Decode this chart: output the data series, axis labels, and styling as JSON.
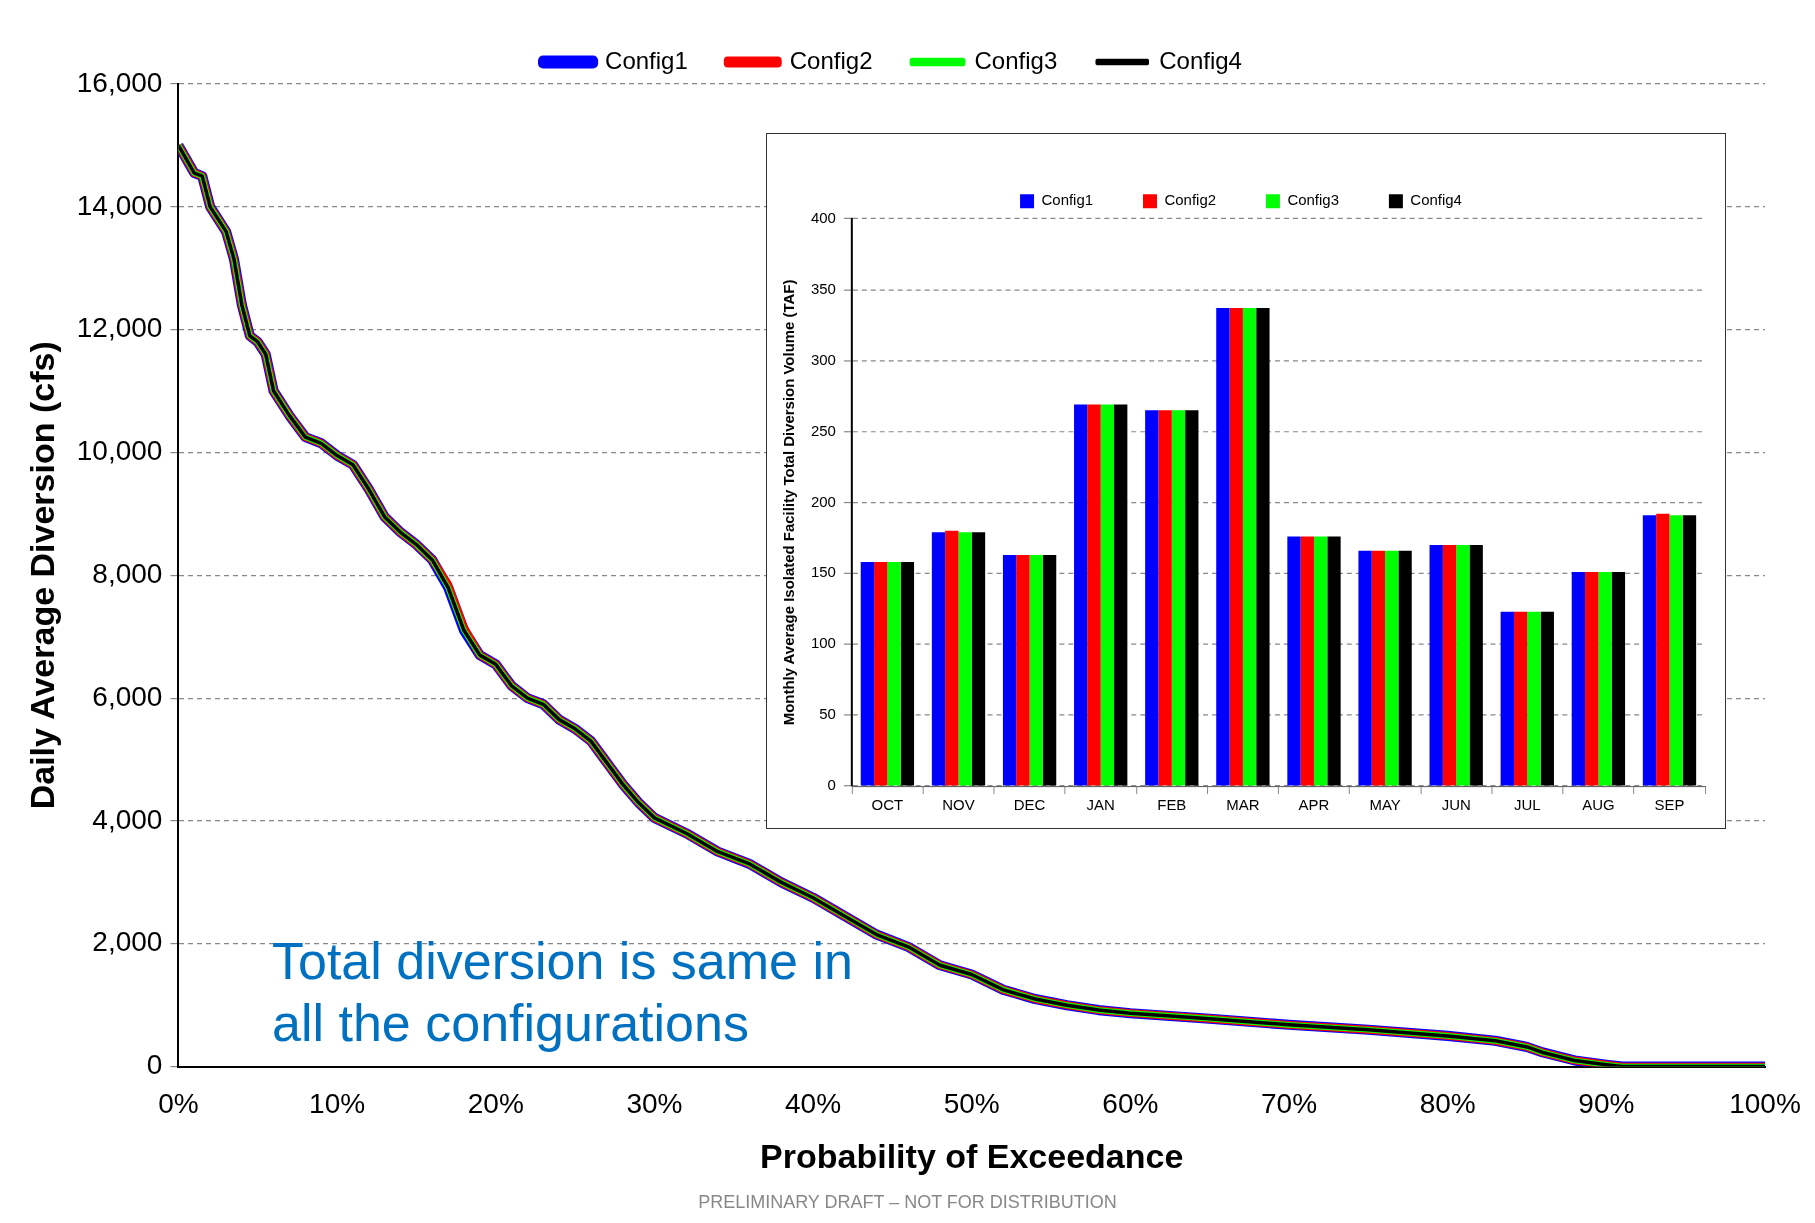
{
  "chart_data": [
    {
      "type": "line",
      "xlabel": "Probability of Exceedance",
      "ylabel": "Daily Average Diversion (cfs)",
      "x": [
        0,
        1,
        1.5,
        2,
        3,
        3.5,
        4,
        4.5,
        5,
        5.5,
        6,
        7,
        8,
        9,
        10,
        11,
        12,
        13,
        14,
        15,
        16,
        17,
        18,
        19,
        20,
        21,
        22,
        23,
        24,
        25,
        26,
        27,
        28,
        29,
        30,
        32,
        34,
        36,
        38,
        40,
        42,
        44,
        46,
        48,
        50,
        52,
        54,
        56,
        58,
        60,
        65,
        70,
        75,
        80,
        83,
        85,
        86,
        88,
        90,
        91,
        100
      ],
      "series": [
        {
          "name": "Config1",
          "color": "#0000ff",
          "values": [
            15000,
            14550,
            14500,
            14000,
            13600,
            13150,
            12400,
            11900,
            11800,
            11600,
            11000,
            10600,
            10250,
            10150,
            9950,
            9800,
            9400,
            8950,
            8700,
            8500,
            8250,
            7800,
            7100,
            6700,
            6550,
            6200,
            6000,
            5900,
            5650,
            5500,
            5300,
            4950,
            4600,
            4300,
            4050,
            3800,
            3500,
            3300,
            3000,
            2750,
            2450,
            2150,
            1950,
            1650,
            1500,
            1250,
            1100,
            1000,
            920,
            870,
            780,
            680,
            600,
            500,
            420,
            320,
            230,
            100,
            30,
            0,
            0
          ]
        },
        {
          "name": "Config2",
          "color": "#ff0000",
          "values": [
            15000,
            14550,
            14500,
            14000,
            13600,
            13150,
            12400,
            11900,
            11800,
            11600,
            11000,
            10600,
            10250,
            10150,
            9950,
            9800,
            9400,
            8950,
            8700,
            8500,
            8250,
            7850,
            7150,
            6700,
            6550,
            6200,
            6000,
            5900,
            5650,
            5500,
            5300,
            4950,
            4600,
            4300,
            4050,
            3800,
            3500,
            3300,
            3000,
            2750,
            2450,
            2150,
            1950,
            1650,
            1500,
            1250,
            1100,
            1000,
            920,
            870,
            780,
            680,
            600,
            500,
            420,
            320,
            230,
            100,
            30,
            0,
            0
          ]
        },
        {
          "name": "Config3",
          "color": "#00ff00",
          "values": [
            15000,
            14550,
            14500,
            14000,
            13600,
            13150,
            12400,
            11900,
            11800,
            11600,
            11000,
            10600,
            10250,
            10150,
            9950,
            9800,
            9400,
            8950,
            8700,
            8500,
            8250,
            7800,
            7100,
            6700,
            6550,
            6200,
            6000,
            5900,
            5650,
            5500,
            5300,
            4950,
            4600,
            4300,
            4050,
            3800,
            3500,
            3300,
            3000,
            2750,
            2450,
            2150,
            1950,
            1650,
            1500,
            1250,
            1100,
            1000,
            920,
            870,
            780,
            680,
            600,
            500,
            420,
            320,
            230,
            100,
            30,
            0,
            0
          ]
        },
        {
          "name": "Config4",
          "color": "#000000",
          "values": [
            15000,
            14550,
            14500,
            14000,
            13600,
            13150,
            12400,
            11900,
            11800,
            11600,
            11000,
            10600,
            10250,
            10150,
            9950,
            9800,
            9400,
            8950,
            8700,
            8500,
            8250,
            7800,
            7100,
            6700,
            6550,
            6200,
            6000,
            5900,
            5650,
            5500,
            5300,
            4950,
            4600,
            4300,
            4050,
            3800,
            3500,
            3300,
            3000,
            2750,
            2450,
            2150,
            1950,
            1650,
            1500,
            1250,
            1100,
            1000,
            920,
            870,
            780,
            680,
            600,
            500,
            420,
            320,
            230,
            100,
            30,
            0,
            0
          ]
        }
      ],
      "xlim": [
        0,
        100
      ],
      "xticks": [
        {
          "value": 0,
          "label": "0%"
        },
        {
          "value": 10,
          "label": "10%"
        },
        {
          "value": 20,
          "label": "20%"
        },
        {
          "value": 30,
          "label": "30%"
        },
        {
          "value": 40,
          "label": "40%"
        },
        {
          "value": 50,
          "label": "50%"
        },
        {
          "value": 60,
          "label": "60%"
        },
        {
          "value": 70,
          "label": "70%"
        },
        {
          "value": 80,
          "label": "80%"
        },
        {
          "value": 90,
          "label": "90%"
        },
        {
          "value": 100,
          "label": "100%"
        }
      ],
      "ylim": [
        0,
        16000
      ],
      "yticks": [
        {
          "value": 0,
          "label": "0"
        },
        {
          "value": 2000,
          "label": "2,000"
        },
        {
          "value": 4000,
          "label": "4,000"
        },
        {
          "value": 6000,
          "label": "6,000"
        },
        {
          "value": 8000,
          "label": "8,000"
        },
        {
          "value": 10000,
          "label": "10,000"
        },
        {
          "value": 12000,
          "label": "12,000"
        },
        {
          "value": 14000,
          "label": "14,000"
        },
        {
          "value": 16000,
          "label": "16,000"
        }
      ],
      "grid": "y",
      "legend": "top",
      "marker": "none",
      "line_style": "solid",
      "annotations": [
        "Total diversion is same in all the configurations",
        "PRELIMINARY DRAFT – NOT FOR DISTRIBUTION"
      ]
    },
    {
      "type": "bar",
      "ylabel": "Monthly Average Isolated Facility Total Diversion Volume (TAF)",
      "categories": [
        "OCT",
        "NOV",
        "DEC",
        "JAN",
        "FEB",
        "MAR",
        "APR",
        "MAY",
        "JUN",
        "JUL",
        "AUG",
        "SEP"
      ],
      "series": [
        {
          "name": "Config1",
          "color": "#0000ff",
          "values": [
            158,
            179,
            163,
            269,
            265,
            337,
            176,
            166,
            170,
            123,
            151,
            191
          ]
        },
        {
          "name": "Config2",
          "color": "#ff0000",
          "values": [
            158,
            180,
            163,
            269,
            265,
            337,
            176,
            166,
            170,
            123,
            151,
            192
          ]
        },
        {
          "name": "Config3",
          "color": "#00ff00",
          "values": [
            158,
            179,
            163,
            269,
            265,
            337,
            176,
            166,
            170,
            123,
            151,
            191
          ]
        },
        {
          "name": "Config4",
          "color": "#000000",
          "values": [
            158,
            179,
            163,
            269,
            265,
            337,
            176,
            166,
            170,
            123,
            151,
            191
          ]
        }
      ],
      "ylim": [
        0,
        400
      ],
      "yticks": [
        0,
        50,
        100,
        150,
        200,
        250,
        300,
        350,
        400
      ],
      "grid": "y",
      "legend": "top"
    }
  ]
}
